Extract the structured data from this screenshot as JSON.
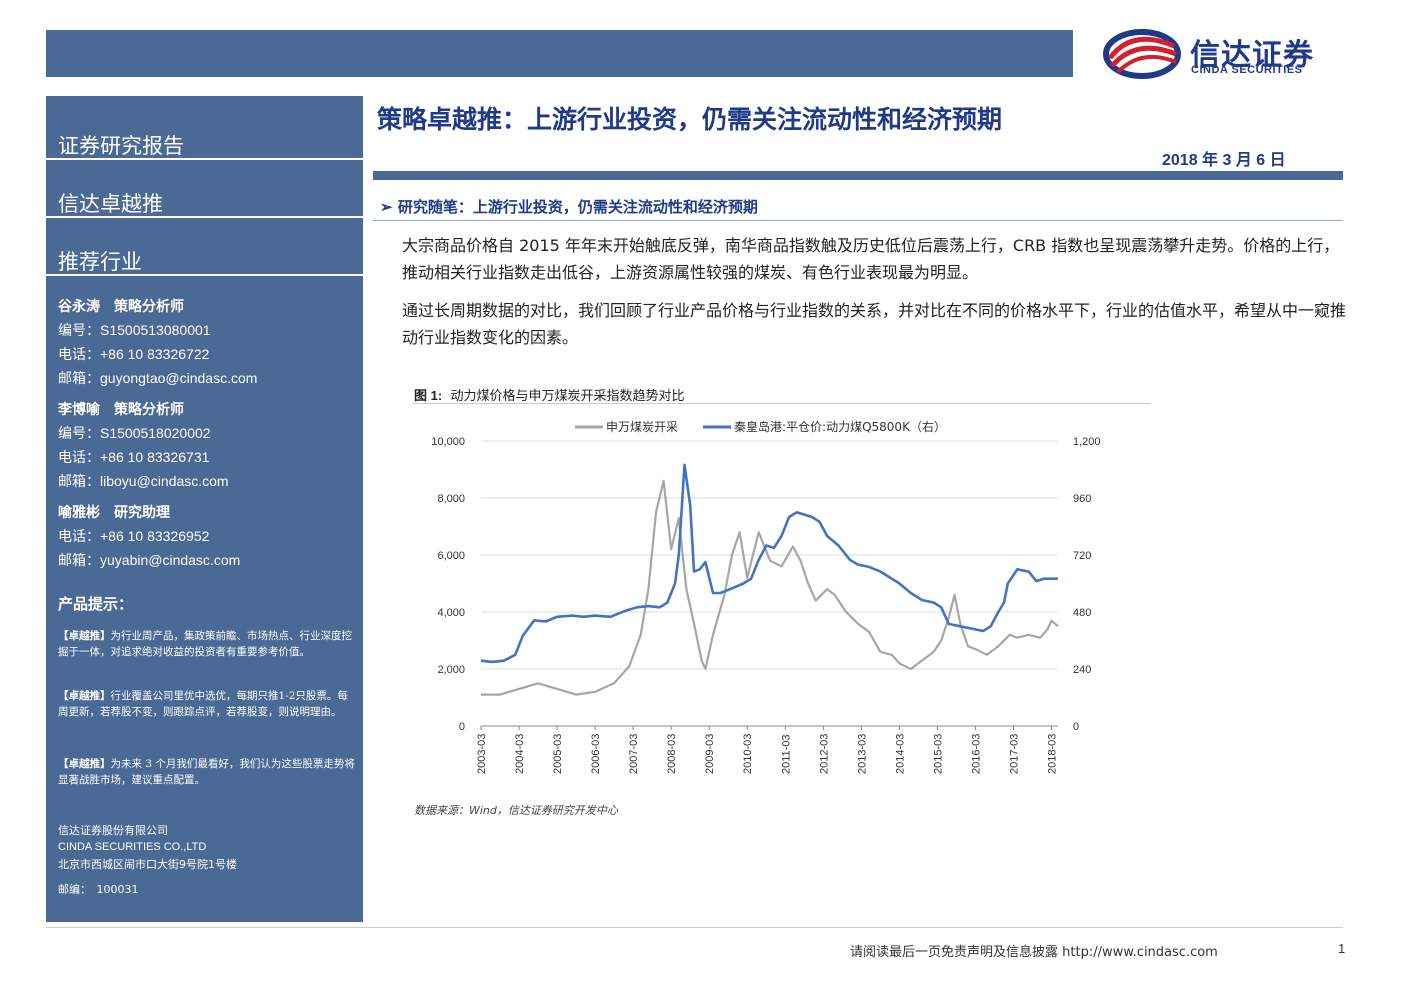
{
  "header": {
    "logo_cn": "信达证券",
    "logo_en": "CINDA SECURITIES"
  },
  "sidebar": {
    "report_type": "证券研究报告",
    "series": "信达卓越推",
    "category": "推荐行业",
    "analysts": [
      {
        "name": "谷永涛　策略分析师",
        "rows": [
          {
            "label": "编号：",
            "value": "S1500513080001"
          },
          {
            "label": "电话：",
            "value": "+86 10 83326722"
          },
          {
            "label": "邮箱：",
            "value": "guyongtao@cindasc.com"
          }
        ]
      },
      {
        "name": "李博喻　策略分析师",
        "rows": [
          {
            "label": "编号：",
            "value": "S1500518020002"
          },
          {
            "label": "电话：",
            "value": "+86 10 83326731"
          },
          {
            "label": "邮箱：",
            "value": "liboyu@cindasc.com"
          }
        ]
      },
      {
        "name": "喻雅彬　研究助理",
        "rows": [
          {
            "label": "电话：",
            "value": "+86 10 83326952"
          },
          {
            "label": "邮箱：",
            "value": "yuyabin@cindasc.com"
          }
        ]
      }
    ],
    "tips_title": "产品提示：",
    "tips": [
      {
        "tag": "【卓越推】",
        "text": "为行业周产品，集政策前瞻、市场热点、行业深度挖掘于一体，对追求绝对收益的投资者有重要参考价值。"
      },
      {
        "tag": "【卓越推】",
        "text": "行业覆盖公司里优中选优，每期只推1-2只股票。每周更新，若荐股不变，则跟踪点评，若荐股变，则说明理由。"
      },
      {
        "tag": "【卓越推】",
        "text": "为未来 3 个月我们最看好，我们认为这些股票走势将显著战胜市场，建议重点配置。"
      }
    ],
    "company_cn": "信达证券股份有限公司",
    "company_en": "CINDA SECURITIES CO.,LTD",
    "address": "北京市西城区闹市口大街9号院1号楼",
    "postcode": "邮编：　100031"
  },
  "main": {
    "title": "策略卓越推：上游行业投资，仍需关注流动性和经济预期",
    "date": "2018 年 3 月 6 日",
    "section_marker": "➢",
    "section_title": "研究随笔：上游行业投资，仍需关注流动性和经济预期",
    "paragraphs": [
      "大宗商品价格自 2015 年年末开始触底反弹，南华商品指数触及历史低位后震荡上行，CRB 指数也呈现震荡攀升走势。价格的上行，推动相关行业指数走出低谷，上游资源属性较强的煤炭、有色行业表现最为明显。",
      "通过长周期数据的对比，我们回顾了行业产品价格与行业指数的关系，并对比在不同的价格水平下，行业的估值水平，希望从中一窥推动行业指数变化的因素。"
    ],
    "figure_label": "图 1:",
    "figure_title": "动力煤价格与申万煤炭开采指数趋势对比",
    "source": "数据来源：Wind，信达证券研究开发中心"
  },
  "footer": {
    "disclaimer": "请阅读最后一页免责声明及信息披露 http://www.cindasc.com",
    "page": "1"
  },
  "colors": {
    "brand": "#4a6a95",
    "title": "#1f3a87",
    "series_gray": "#a6a6a6",
    "series_blue": "#4472c4"
  },
  "chart_data": {
    "type": "line",
    "legend_position": "top",
    "y_left": {
      "min": 0,
      "max": 10000,
      "ticks": [
        "0",
        "2,000",
        "4,000",
        "6,000",
        "8,000",
        "10,000"
      ]
    },
    "y_right": {
      "min": 0,
      "max": 1200,
      "ticks": [
        "0",
        "240",
        "480",
        "720",
        "960",
        "1,200"
      ]
    },
    "x_ticks": [
      "2003-03",
      "2004-03",
      "2005-03",
      "2006-03",
      "2007-03",
      "2008-03",
      "2009-03",
      "2010-03",
      "2011-03",
      "2012-03",
      "2013-03",
      "2014-03",
      "2015-03",
      "2016-03",
      "2017-03",
      "2018-03"
    ],
    "grid": "horizontal",
    "series": [
      {
        "name": "申万煤炭开采",
        "axis": "left",
        "color": "#a6a6a6",
        "x": [
          2003.0,
          2003.5,
          2004.0,
          2004.5,
          2005.0,
          2005.5,
          2006.0,
          2006.5,
          2006.9,
          2007.2,
          2007.4,
          2007.6,
          2007.8,
          2008.0,
          2008.2,
          2008.4,
          2008.6,
          2008.8,
          2008.9,
          2009.1,
          2009.4,
          2009.6,
          2009.8,
          2010.0,
          2010.3,
          2010.6,
          2010.9,
          2011.2,
          2011.4,
          2011.6,
          2011.8,
          2012.1,
          2012.3,
          2012.6,
          2012.9,
          2013.2,
          2013.5,
          2013.8,
          2014.0,
          2014.3,
          2014.6,
          2014.9,
          2015.1,
          2015.3,
          2015.45,
          2015.6,
          2015.8,
          2016.0,
          2016.3,
          2016.6,
          2016.9,
          2017.1,
          2017.4,
          2017.7,
          2017.9,
          2018.0,
          2018.17
        ],
        "y": [
          1100,
          1100,
          1300,
          1500,
          1300,
          1100,
          1200,
          1500,
          2100,
          3200,
          4800,
          7500,
          8600,
          6200,
          7300,
          4800,
          3600,
          2300,
          2000,
          3200,
          4600,
          6000,
          6800,
          5200,
          6800,
          5800,
          5600,
          6300,
          5800,
          5000,
          4400,
          4800,
          4600,
          4000,
          3600,
          3300,
          2600,
          2500,
          2200,
          2000,
          2300,
          2600,
          3000,
          3800,
          4600,
          3600,
          2800,
          2700,
          2500,
          2800,
          3200,
          3100,
          3200,
          3100,
          3400,
          3700,
          3500
        ]
      },
      {
        "name": "秦皇岛港:平仓价:动力煤Q5800K（右）",
        "axis": "right",
        "color": "#4472c4",
        "x": [
          2003.0,
          2003.3,
          2003.6,
          2003.9,
          2004.1,
          2004.4,
          2004.7,
          2005.0,
          2005.4,
          2005.7,
          2006.0,
          2006.4,
          2006.8,
          2007.1,
          2007.4,
          2007.7,
          2007.9,
          2008.1,
          2008.2,
          2008.35,
          2008.5,
          2008.6,
          2008.75,
          2008.9,
          2009.1,
          2009.3,
          2009.6,
          2009.9,
          2010.1,
          2010.3,
          2010.5,
          2010.7,
          2010.9,
          2011.1,
          2011.3,
          2011.5,
          2011.7,
          2011.9,
          2012.1,
          2012.4,
          2012.7,
          2012.9,
          2013.2,
          2013.5,
          2013.8,
          2014.0,
          2014.3,
          2014.6,
          2014.9,
          2015.1,
          2015.3,
          2015.6,
          2015.9,
          2016.2,
          2016.4,
          2016.6,
          2016.75,
          2016.85,
          2017.1,
          2017.4,
          2017.6,
          2017.8,
          2018.0,
          2018.17
        ],
        "y": [
          275,
          270,
          275,
          300,
          380,
          445,
          440,
          460,
          465,
          460,
          465,
          460,
          485,
          500,
          505,
          500,
          520,
          600,
          720,
          1100,
          930,
          650,
          660,
          690,
          560,
          560,
          580,
          600,
          620,
          700,
          760,
          750,
          800,
          880,
          900,
          890,
          880,
          860,
          800,
          760,
          700,
          680,
          670,
          650,
          620,
          600,
          560,
          530,
          520,
          500,
          430,
          420,
          410,
          400,
          420,
          480,
          520,
          600,
          660,
          650,
          610,
          620,
          620,
          620
        ]
      }
    ]
  }
}
